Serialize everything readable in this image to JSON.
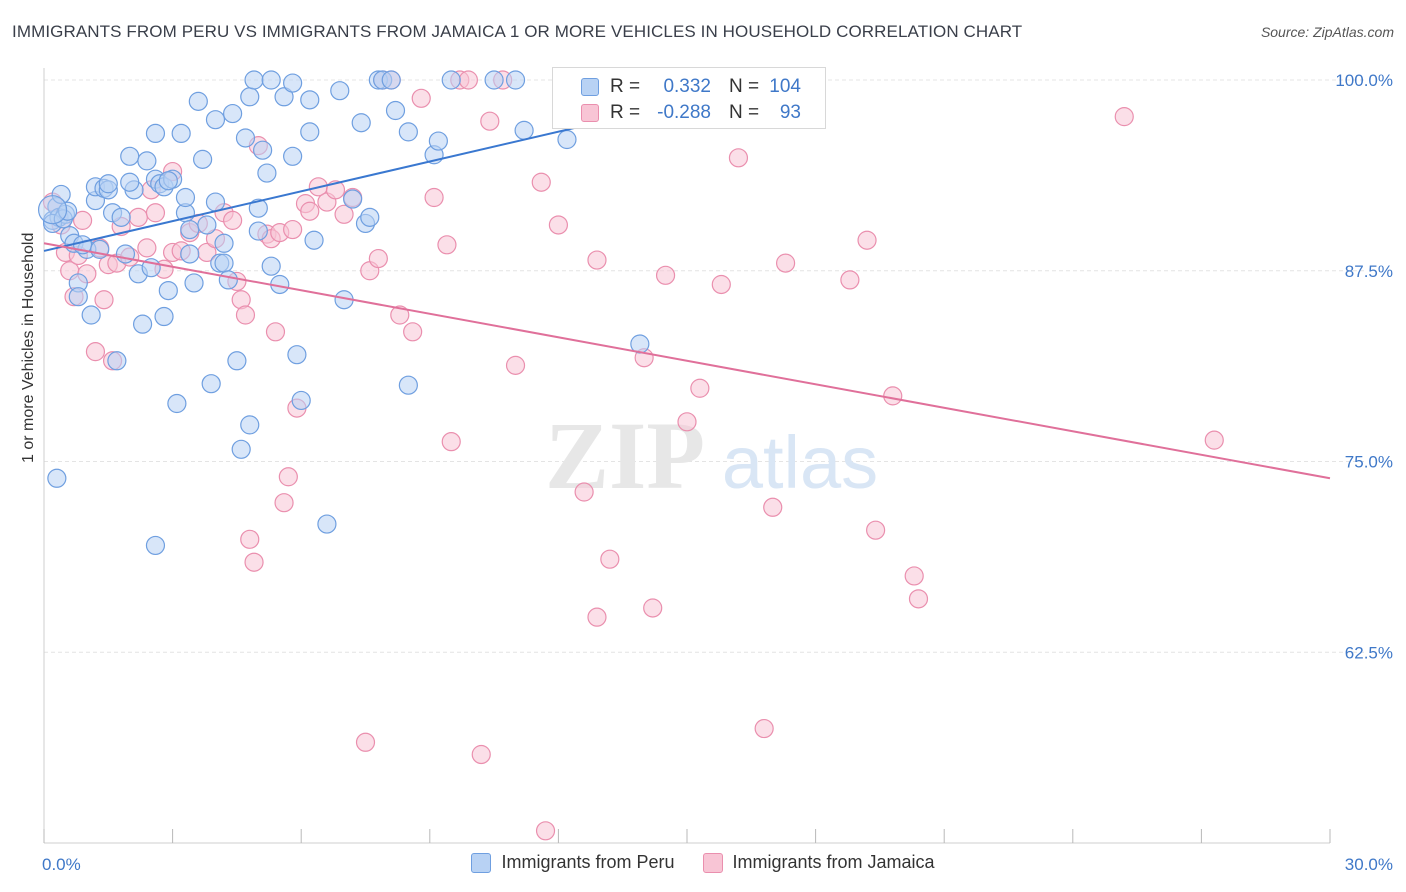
{
  "header": {
    "title": "IMMIGRANTS FROM PERU VS IMMIGRANTS FROM JAMAICA 1 OR MORE VEHICLES IN HOUSEHOLD CORRELATION CHART",
    "source": "Source: ZipAtlas.com"
  },
  "watermark": {
    "zip": "ZIP",
    "atlas": "atlas"
  },
  "stats_box": {
    "peru": {
      "r_label": "R =",
      "r_value": "0.332",
      "n_label": "N =",
      "n_value": "104"
    },
    "jamaica": {
      "r_label": "R =",
      "r_value": "-0.288",
      "n_label": "N =",
      "n_value": "93"
    }
  },
  "legend": {
    "peru_label": "Immigrants from Peru",
    "jamaica_label": "Immigrants from Jamaica"
  },
  "colors": {
    "peru_fill": "#b8d2f4",
    "peru_stroke": "#6f9fe0",
    "peru_line": "#3a78d0",
    "jamaica_fill": "#f8c5d5",
    "jamaica_stroke": "#ea8fae",
    "jamaica_line": "#e0709a",
    "tick_label": "#3f78c8",
    "grid": "#e4e4e4"
  },
  "chart_data": {
    "type": "scatter",
    "title": "IMMIGRANTS FROM PERU VS IMMIGRANTS FROM JAMAICA 1 OR MORE VEHICLES IN HOUSEHOLD CORRELATION CHART",
    "xlabel": "",
    "ylabel": "1 or more Vehicles in Household",
    "xlim": [
      0,
      30
    ],
    "ylim": [
      50,
      100
    ],
    "x_ticks": [
      0,
      30
    ],
    "x_tick_labels": [
      "0.0%",
      "30.0%"
    ],
    "y_ticks": [
      62.5,
      75,
      87.5,
      100
    ],
    "y_tick_labels": [
      "62.5%",
      "75.0%",
      "87.5%",
      "100.0%"
    ],
    "grid": true,
    "legend_position": "bottom",
    "series": [
      {
        "name": "Immigrants from Peru",
        "trend": {
          "x": [
            0,
            17.2
          ],
          "y": [
            88.8,
            100.0
          ]
        },
        "points": [
          [
            0.2,
            90.8
          ],
          [
            0.3,
            91.7
          ],
          [
            0.35,
            91.0
          ],
          [
            0.4,
            92.5
          ],
          [
            0.5,
            91.2
          ],
          [
            0.6,
            89.8
          ],
          [
            0.7,
            89.3
          ],
          [
            0.8,
            86.7
          ],
          [
            0.8,
            85.8
          ],
          [
            1.0,
            88.9
          ],
          [
            1.1,
            84.6
          ],
          [
            1.2,
            92.1
          ],
          [
            1.2,
            93.0
          ],
          [
            1.4,
            92.9
          ],
          [
            1.5,
            92.8
          ],
          [
            1.5,
            93.2
          ],
          [
            1.6,
            91.3
          ],
          [
            1.7,
            81.6
          ],
          [
            1.8,
            91.0
          ],
          [
            1.9,
            88.6
          ],
          [
            2.0,
            95.0
          ],
          [
            2.1,
            92.8
          ],
          [
            2.2,
            87.3
          ],
          [
            2.3,
            84.0
          ],
          [
            2.4,
            94.7
          ],
          [
            2.5,
            87.7
          ],
          [
            2.6,
            96.5
          ],
          [
            2.6,
            93.5
          ],
          [
            2.7,
            93.2
          ],
          [
            2.8,
            93.0
          ],
          [
            2.8,
            84.5
          ],
          [
            2.9,
            86.2
          ],
          [
            3.0,
            93.5
          ],
          [
            3.1,
            78.8
          ],
          [
            3.2,
            96.5
          ],
          [
            3.3,
            91.3
          ],
          [
            3.4,
            90.2
          ],
          [
            3.4,
            88.6
          ],
          [
            3.5,
            86.7
          ],
          [
            3.6,
            98.6
          ],
          [
            3.7,
            94.8
          ],
          [
            3.8,
            90.5
          ],
          [
            3.9,
            80.1
          ],
          [
            4.0,
            92.0
          ],
          [
            4.0,
            97.4
          ],
          [
            4.1,
            88.0
          ],
          [
            4.2,
            88.0
          ],
          [
            4.3,
            86.9
          ],
          [
            4.4,
            97.8
          ],
          [
            4.5,
            81.6
          ],
          [
            4.6,
            75.8
          ],
          [
            4.7,
            96.2
          ],
          [
            4.8,
            77.4
          ],
          [
            4.8,
            98.9
          ],
          [
            4.9,
            100.0
          ],
          [
            5.0,
            91.6
          ],
          [
            5.1,
            95.4
          ],
          [
            5.2,
            93.9
          ],
          [
            5.3,
            87.8
          ],
          [
            5.3,
            100.0
          ],
          [
            5.5,
            86.6
          ],
          [
            5.6,
            98.9
          ],
          [
            5.8,
            99.8
          ],
          [
            5.8,
            95.0
          ],
          [
            5.9,
            82.0
          ],
          [
            6.0,
            79.0
          ],
          [
            6.2,
            96.6
          ],
          [
            6.2,
            98.7
          ],
          [
            6.6,
            70.9
          ],
          [
            6.9,
            99.3
          ],
          [
            7.0,
            85.6
          ],
          [
            7.2,
            92.2
          ],
          [
            7.4,
            97.2
          ],
          [
            7.5,
            90.6
          ],
          [
            7.8,
            100.0
          ],
          [
            7.9,
            100.0
          ],
          [
            8.1,
            100.0
          ],
          [
            8.2,
            98.0
          ],
          [
            8.5,
            80.0
          ],
          [
            8.5,
            96.6
          ],
          [
            9.1,
            95.1
          ],
          [
            9.2,
            96.0
          ],
          [
            9.5,
            100.0
          ],
          [
            10.5,
            100.0
          ],
          [
            11.0,
            100.0
          ],
          [
            11.2,
            96.7
          ],
          [
            12.2,
            96.1
          ],
          [
            13.4,
            100.0
          ],
          [
            13.9,
            82.7
          ],
          [
            14.0,
            100.0
          ],
          [
            0.2,
            90.6
          ],
          [
            0.45,
            90.9
          ],
          [
            0.55,
            91.4
          ],
          [
            0.3,
            73.9
          ],
          [
            2.6,
            69.5
          ],
          [
            0.9,
            89.2
          ],
          [
            1.3,
            88.9
          ],
          [
            2.9,
            93.4
          ],
          [
            3.3,
            92.3
          ],
          [
            2.0,
            93.3
          ],
          [
            5.0,
            90.1
          ],
          [
            6.3,
            89.5
          ],
          [
            7.6,
            91.0
          ],
          [
            4.2,
            89.3
          ]
        ]
      },
      {
        "name": "Immigrants from Jamaica",
        "trend": {
          "x": [
            0,
            30
          ],
          "y": [
            89.3,
            73.9
          ]
        },
        "points": [
          [
            0.2,
            92.0
          ],
          [
            0.4,
            90.5
          ],
          [
            0.5,
            88.7
          ],
          [
            0.6,
            87.5
          ],
          [
            0.7,
            85.8
          ],
          [
            0.8,
            88.5
          ],
          [
            0.9,
            90.8
          ],
          [
            1.0,
            87.3
          ],
          [
            1.2,
            82.2
          ],
          [
            1.3,
            89.0
          ],
          [
            1.4,
            85.6
          ],
          [
            1.5,
            87.9
          ],
          [
            1.6,
            81.6
          ],
          [
            1.7,
            88.0
          ],
          [
            1.8,
            90.4
          ],
          [
            2.0,
            88.4
          ],
          [
            2.2,
            91.0
          ],
          [
            2.4,
            89.0
          ],
          [
            2.5,
            92.8
          ],
          [
            2.6,
            91.3
          ],
          [
            2.8,
            87.6
          ],
          [
            3.0,
            88.7
          ],
          [
            3.0,
            94.0
          ],
          [
            3.2,
            88.8
          ],
          [
            3.4,
            90.0
          ],
          [
            3.6,
            90.6
          ],
          [
            3.8,
            88.7
          ],
          [
            4.0,
            89.6
          ],
          [
            4.2,
            91.3
          ],
          [
            4.4,
            90.8
          ],
          [
            4.5,
            86.8
          ],
          [
            4.6,
            85.6
          ],
          [
            4.7,
            84.6
          ],
          [
            4.8,
            69.9
          ],
          [
            4.9,
            68.4
          ],
          [
            5.0,
            95.7
          ],
          [
            5.2,
            89.9
          ],
          [
            5.3,
            89.6
          ],
          [
            5.4,
            83.5
          ],
          [
            5.5,
            90.0
          ],
          [
            5.6,
            72.3
          ],
          [
            5.7,
            74.0
          ],
          [
            5.8,
            90.2
          ],
          [
            5.9,
            78.5
          ],
          [
            6.1,
            91.9
          ],
          [
            6.2,
            91.4
          ],
          [
            6.4,
            93.0
          ],
          [
            6.6,
            92.0
          ],
          [
            6.8,
            92.8
          ],
          [
            7.0,
            91.2
          ],
          [
            7.2,
            92.3
          ],
          [
            7.5,
            56.6
          ],
          [
            7.6,
            87.5
          ],
          [
            7.8,
            88.3
          ],
          [
            7.9,
            100.0
          ],
          [
            8.1,
            100.0
          ],
          [
            8.3,
            84.6
          ],
          [
            8.6,
            83.5
          ],
          [
            8.8,
            98.8
          ],
          [
            9.1,
            92.3
          ],
          [
            9.4,
            89.2
          ],
          [
            9.5,
            76.3
          ],
          [
            9.7,
            100.0
          ],
          [
            9.9,
            100.0
          ],
          [
            10.2,
            55.8
          ],
          [
            10.4,
            97.3
          ],
          [
            10.7,
            100.0
          ],
          [
            11.0,
            81.3
          ],
          [
            11.6,
            93.3
          ],
          [
            11.7,
            50.8
          ],
          [
            12.0,
            90.5
          ],
          [
            12.6,
            73.0
          ],
          [
            12.9,
            64.8
          ],
          [
            13.2,
            68.6
          ],
          [
            14.0,
            81.8
          ],
          [
            14.2,
            65.4
          ],
          [
            14.5,
            87.2
          ],
          [
            15.0,
            77.6
          ],
          [
            15.3,
            79.8
          ],
          [
            15.8,
            86.6
          ],
          [
            16.2,
            94.9
          ],
          [
            16.8,
            57.5
          ],
          [
            17.0,
            72.0
          ],
          [
            17.3,
            88.0
          ],
          [
            18.8,
            86.9
          ],
          [
            19.2,
            89.5
          ],
          [
            19.4,
            70.5
          ],
          [
            19.8,
            79.3
          ],
          [
            20.3,
            67.5
          ],
          [
            20.4,
            66.0
          ],
          [
            25.2,
            97.6
          ],
          [
            27.3,
            76.4
          ],
          [
            12.9,
            88.2
          ]
        ]
      }
    ]
  }
}
